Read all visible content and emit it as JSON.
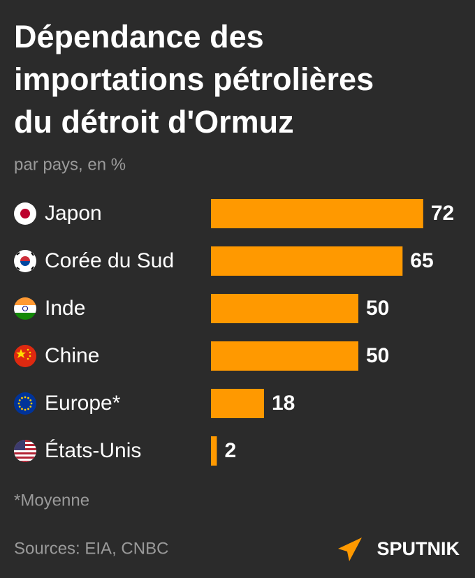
{
  "chart_data": {
    "type": "bar",
    "orientation": "horizontal",
    "title": [
      "Dépendance des",
      "importations pétrolières",
      "du détroit d'Ormuz"
    ],
    "subtitle": "par pays, en %",
    "categories": [
      "Japon",
      "Corée du Sud",
      "Inde",
      "Chine",
      "Europe*",
      "États-Unis"
    ],
    "values": [
      72,
      65,
      50,
      50,
      18,
      2
    ],
    "color": "#ff9900",
    "footnote": "*Moyenne",
    "source": "Sources: EIA, CNBC",
    "brand": "SPUTNIK"
  }
}
